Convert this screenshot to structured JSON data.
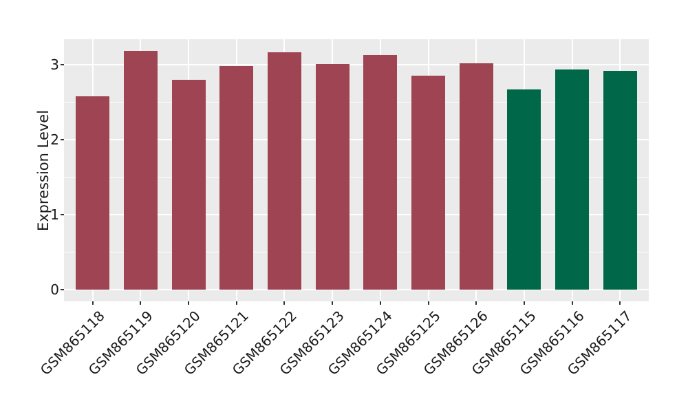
{
  "chart_data": {
    "type": "bar",
    "title": "",
    "xlabel": "",
    "ylabel": "Expression Level",
    "categories": [
      "GSM865118",
      "GSM865119",
      "GSM865120",
      "GSM865121",
      "GSM865122",
      "GSM865123",
      "GSM865124",
      "GSM865125",
      "GSM865126",
      "GSM865115",
      "GSM865116",
      "GSM865117"
    ],
    "values": [
      2.58,
      3.18,
      2.8,
      2.98,
      3.17,
      3.01,
      3.13,
      2.85,
      3.02,
      2.67,
      2.94,
      2.92
    ],
    "bar_groups": [
      "red",
      "red",
      "red",
      "red",
      "red",
      "red",
      "red",
      "red",
      "red",
      "green",
      "green",
      "green"
    ],
    "group_colors": {
      "red": "#9E4452",
      "green": "#006749"
    },
    "yticks": [
      0,
      1,
      2,
      3
    ],
    "ylim": [
      -0.16,
      3.34
    ],
    "bar_width_frac": 0.7,
    "grid": true,
    "legend": "none",
    "panel_bg": "#EBEBEB",
    "grid_color": "#FFFFFF",
    "tick_color": "#333333"
  }
}
